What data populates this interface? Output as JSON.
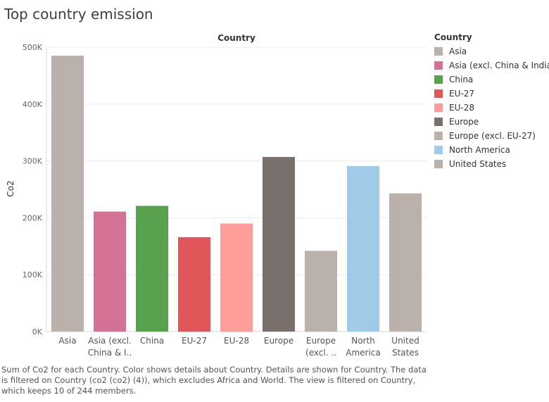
{
  "title": "Top country emission",
  "legend": {
    "title": "Country",
    "items": [
      {
        "label": "Asia",
        "color": "#bab0ac"
      },
      {
        "label": "Asia (excl. China & India)",
        "color": "#d37295"
      },
      {
        "label": "China",
        "color": "#59a14f"
      },
      {
        "label": "EU-27",
        "color": "#e15759"
      },
      {
        "label": "EU-28",
        "color": "#ff9d9a"
      },
      {
        "label": "Europe",
        "color": "#79706e"
      },
      {
        "label": "Europe (excl. EU-27)",
        "color": "#bab0ac"
      },
      {
        "label": "North America",
        "color": "#a0cbe8"
      },
      {
        "label": "United States",
        "color": "#bab0ac"
      }
    ]
  },
  "caption": [
    "Sum of Co2 for each Country.  Color shows details about Country.  Details are shown for Country. The data",
    "is filtered on Country (co2 (co2) (4)), which excludes Africa and World. The view is filtered on Country,",
    "which keeps 10 of 244 members."
  ],
  "chart_data": {
    "type": "bar",
    "title": "Country",
    "ylabel": "Co2",
    "ylim": [
      0,
      500000
    ],
    "yticks": [
      0,
      100000,
      200000,
      300000,
      400000,
      500000
    ],
    "ytick_labels": [
      "0K",
      "100K",
      "200K",
      "300K",
      "400K",
      "500K"
    ],
    "categories": [
      [
        "Asia"
      ],
      [
        "Asia (excl.",
        "China & I.."
      ],
      [
        "China"
      ],
      [
        "EU-27"
      ],
      [
        "EU-28"
      ],
      [
        "Europe"
      ],
      [
        "Europe",
        "(excl. .."
      ],
      [
        "North",
        "America"
      ],
      [
        "United",
        "States"
      ]
    ],
    "values": [
      485000,
      211000,
      221000,
      166000,
      190000,
      307000,
      142000,
      291000,
      243000
    ],
    "colors": [
      "#bab0ac",
      "#d37295",
      "#59a14f",
      "#e15759",
      "#ff9d9a",
      "#79706e",
      "#bab0ac",
      "#a0cbe8",
      "#bab0ac"
    ],
    "grid": true
  }
}
